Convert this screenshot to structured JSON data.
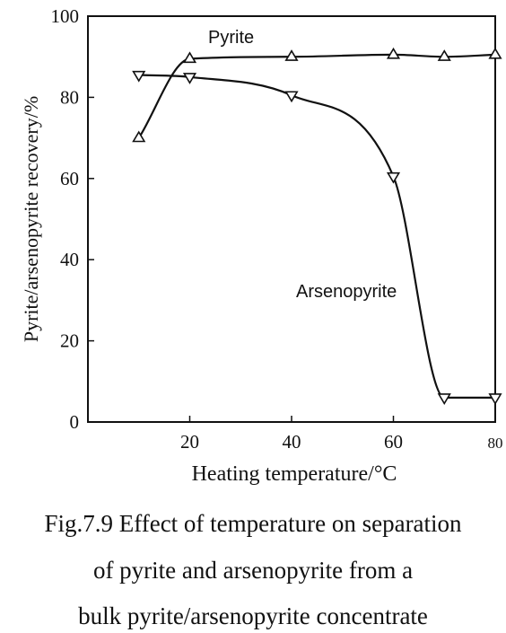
{
  "chart_data": {
    "type": "line",
    "xlabel": "Heating temperature/°C",
    "ylabel": "Pyrite/arsenopyrite recovery/%",
    "xlim": [
      0,
      80
    ],
    "ylim": [
      0,
      100
    ],
    "x_ticks": [
      20,
      40,
      60,
      80
    ],
    "y_ticks": [
      0,
      20,
      40,
      60,
      80,
      100
    ],
    "grid": false,
    "legend": "none",
    "series": [
      {
        "name": "Pyrite",
        "marker": "triangle-up",
        "x": [
          10,
          20,
          40,
          60,
          70,
          80
        ],
        "y": [
          70,
          89.5,
          90,
          90.5,
          90,
          90.5
        ]
      },
      {
        "name": "Arsenopyrite",
        "marker": "triangle-down",
        "x": [
          10,
          20,
          40,
          60,
          70,
          80
        ],
        "y": [
          85.5,
          85,
          80.5,
          60.5,
          6,
          6
        ]
      }
    ]
  },
  "caption": {
    "line1": "Fig.7.9 Effect of temperature on separation",
    "line2": "of pyrite and arsenopyrite from a",
    "line3": "bulk pyrite/arsenopyrite concentrate"
  },
  "colors": {
    "ink": "#111111",
    "background": "#ffffff"
  }
}
